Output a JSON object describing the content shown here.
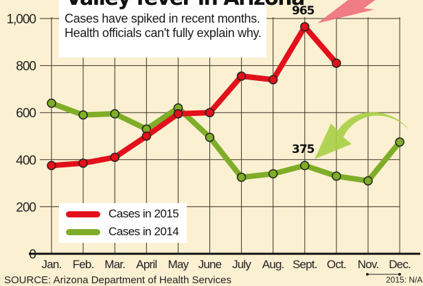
{
  "header": {
    "title": "Valley fever in Arizona",
    "subtitle": "Cases have spiked in recent months. Health officials can't fully explain why."
  },
  "legend": {
    "items": [
      {
        "label": "Cases in 2015",
        "color": "#e3101b"
      },
      {
        "label": "Cases in 2014",
        "color": "#7fad28"
      }
    ]
  },
  "annotations": {
    "peak_2015": "965",
    "sept_2014": "375",
    "na_note": "2015: N/A"
  },
  "source": "SOURCE: Arizona Department of Health Services",
  "colors": {
    "background": "#fbf0d2",
    "red": "#e3101b",
    "green": "#7fad28",
    "grid": "#3a3020"
  },
  "chart_data": {
    "type": "line",
    "title": "Valley fever in Arizona",
    "subtitle": "Cases have spiked in recent months. Health officials can't fully explain why.",
    "xlabel": "",
    "ylabel": "",
    "ylim": [
      0,
      1000
    ],
    "yticks": [
      0,
      200,
      400,
      600,
      800,
      1000
    ],
    "ytick_labels": [
      "0",
      "200",
      "400",
      "600",
      "800",
      "1,000"
    ],
    "grid": true,
    "legend_position": "lower left",
    "categories": [
      "Jan.",
      "Feb.",
      "Mar.",
      "April",
      "May",
      "June",
      "July",
      "Aug.",
      "Sept.",
      "Oct.",
      "Nov.",
      "Dec."
    ],
    "series": [
      {
        "name": "Cases in 2015",
        "color": "#e3101b",
        "values": [
          375,
          385,
          410,
          500,
          595,
          600,
          755,
          740,
          965,
          810,
          null,
          null
        ]
      },
      {
        "name": "Cases in 2014",
        "color": "#7fad28",
        "values": [
          640,
          590,
          595,
          530,
          620,
          495,
          325,
          340,
          375,
          330,
          310,
          475
        ]
      }
    ],
    "annotations": [
      {
        "text": "965",
        "x": "Sept.",
        "series": "Cases in 2015"
      },
      {
        "text": "375",
        "x": "Sept.",
        "series": "Cases in 2014"
      },
      {
        "text": "2015: N/A",
        "x": [
          "Nov.",
          "Dec."
        ]
      }
    ],
    "source": "SOURCE: Arizona Department of Health Services"
  }
}
